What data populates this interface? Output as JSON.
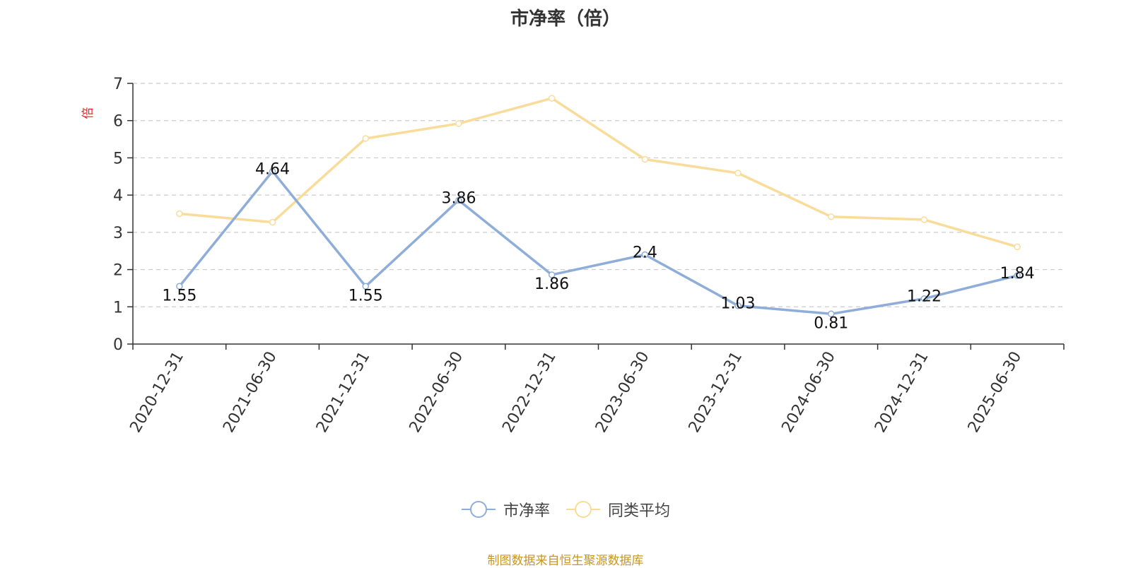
{
  "chart_data": {
    "type": "line",
    "title": "市净率（倍）",
    "ylabel": "倍",
    "xlabel": "",
    "ylim": [
      0,
      7
    ],
    "yticks": [
      "0",
      "1",
      "2",
      "3",
      "4",
      "5",
      "6",
      "7"
    ],
    "grid": true,
    "legend_position": "bottom",
    "categories": [
      "2020-12-31",
      "2021-06-30",
      "2021-12-31",
      "2022-06-30",
      "2022-12-31",
      "2023-06-30",
      "2023-12-31",
      "2024-06-30",
      "2024-12-31",
      "2025-06-30"
    ],
    "series": [
      {
        "name": "市净率",
        "values": [
          1.55,
          4.64,
          1.55,
          3.86,
          1.86,
          2.4,
          1.03,
          0.81,
          1.22,
          1.84
        ],
        "labels": [
          "1.55",
          "4.64",
          "1.55",
          "3.86",
          "1.86",
          "2.4",
          "1.03",
          "0.81",
          "1.22",
          "1.84"
        ],
        "color": "#8eadd8"
      },
      {
        "name": "同类平均",
        "values": [
          3.5,
          3.27,
          5.52,
          5.92,
          6.6,
          4.96,
          4.59,
          3.42,
          3.34,
          2.61
        ],
        "color": "#f9dc9a"
      }
    ],
    "source": "制图数据来自恒生聚源数据库",
    "colors": {
      "axis": "#333333",
      "grid": "#cccccc",
      "ylabel": "#e02020",
      "source": "#c8961e"
    }
  }
}
